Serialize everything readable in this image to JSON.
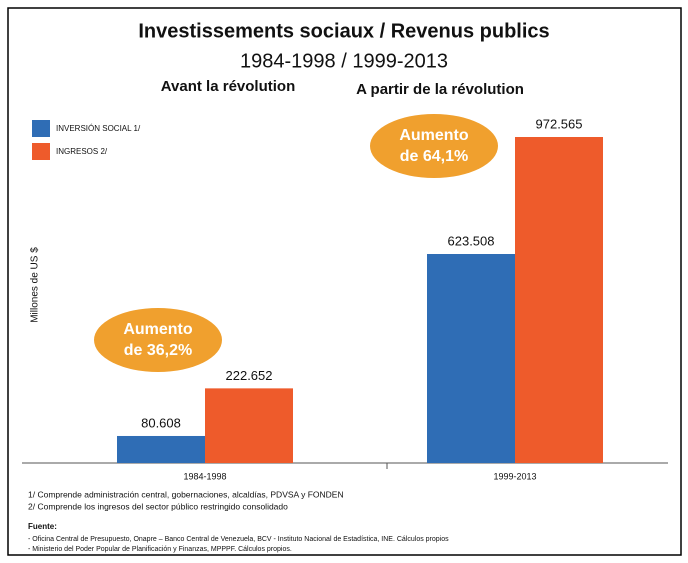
{
  "chart_data": {
    "type": "bar",
    "title": "Investissements sociaux / Revenus publics",
    "subtitle": "1984-1998 / 1999-2013",
    "period_titles": [
      "Avant la révolution",
      "A partir de la révolution"
    ],
    "y_label": "Millones de US $",
    "categories": [
      "1984-1998",
      "1999-2013"
    ],
    "series": [
      {
        "name": "INVERSIÓN SOCIAL 1/",
        "color": "#2f6db5",
        "values": [
          80608,
          623508
        ],
        "value_labels": [
          "80.608",
          "623.508"
        ]
      },
      {
        "name": "INGRESOS 2/",
        "color": "#ee5b2b",
        "values": [
          222652,
          972565
        ],
        "value_labels": [
          "222.652",
          "972.565"
        ]
      }
    ],
    "annotations": [
      [
        "Aumento",
        "de 36,2%"
      ],
      [
        "Aumento",
        "de 64,1%"
      ]
    ],
    "annotation_color": "#f0a02e",
    "notes": [
      "1/ Comprende administración central, gobernaciones, alcaldías, PDVSA y FONDEN",
      "2/ Comprende los ingresos del sector público restringido consolidado"
    ],
    "source_title": "Fuente:",
    "sources": [
      "- Oficina Central de Presupuesto, Onapre – Banco Central de Venezuela, BCV - Instituto Nacional de Estadística, INE. Cálculos propios",
      "- Ministerio del Poder Popular de Planificación y Finanzas, MPPPF. Cálculos propios."
    ]
  }
}
